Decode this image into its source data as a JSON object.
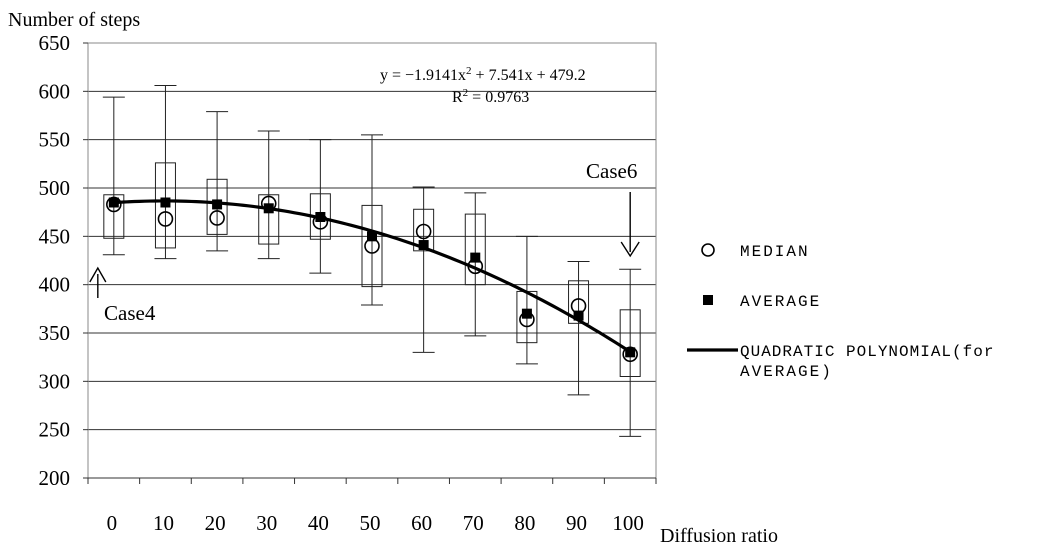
{
  "chart_data": {
    "type": "box",
    "title": "",
    "xlabel": "Diffusion ratio",
    "ylabel": "Number of steps",
    "ylim": [
      200,
      650
    ],
    "yticks": [
      200,
      250,
      300,
      350,
      400,
      450,
      500,
      550,
      600,
      650
    ],
    "categories": [
      "0",
      "10",
      "20",
      "30",
      "40",
      "50",
      "60",
      "70",
      "80",
      "90",
      "100"
    ],
    "x": [
      0,
      10,
      20,
      30,
      40,
      50,
      60,
      70,
      80,
      90,
      100
    ],
    "series": [
      {
        "name": "MEDIAN",
        "marker": "open-circle",
        "values": [
          483,
          468,
          469,
          484,
          465,
          440,
          455,
          419,
          364,
          378,
          328
        ]
      },
      {
        "name": "AVERAGE",
        "marker": "filled-square",
        "values": [
          485,
          485,
          483,
          479,
          470,
          450,
          441,
          428,
          370,
          368,
          330
        ]
      },
      {
        "name": "QUADRATIC POLYNOMIAL(for AVERAGE)",
        "type": "line",
        "equation": "y = −1.9141x² + 7.541x + 479.2"
      }
    ],
    "boxes": {
      "q1": [
        448,
        438,
        452,
        442,
        447,
        398,
        435,
        400,
        340,
        360,
        305
      ],
      "q3": [
        493,
        526,
        509,
        493,
        494,
        482,
        478,
        473,
        393,
        404,
        374
      ],
      "min": [
        431,
        427,
        435,
        427,
        412,
        379,
        330,
        347,
        318,
        286,
        243
      ],
      "max": [
        594,
        606,
        579,
        559,
        550,
        555,
        501,
        495,
        450,
        424,
        416
      ]
    },
    "fit": {
      "a": -1.9141,
      "b": 7.541,
      "c": 479.2,
      "equation_text": "y = −1.9141x",
      "equation_sup": "2",
      "equation_rest": " + 7.541x + 479.2",
      "r2_text": "R",
      "r2_sup": "2",
      "r2_rest": " = 0.9763"
    },
    "annotations": [
      {
        "text": "Case4",
        "target_x": 0,
        "arrow": "up"
      },
      {
        "text": "Case6",
        "target_x": 100,
        "arrow": "down"
      }
    ],
    "legend": {
      "placement": "right",
      "items": [
        {
          "label": "MEDIAN",
          "marker": "open-circle"
        },
        {
          "label": "AVERAGE",
          "marker": "filled-square"
        },
        {
          "label_lines": [
            "QUADRATIC POLYNOMIAL(for",
            "AVERAGE)"
          ],
          "marker": "line"
        }
      ]
    },
    "grid": true
  }
}
